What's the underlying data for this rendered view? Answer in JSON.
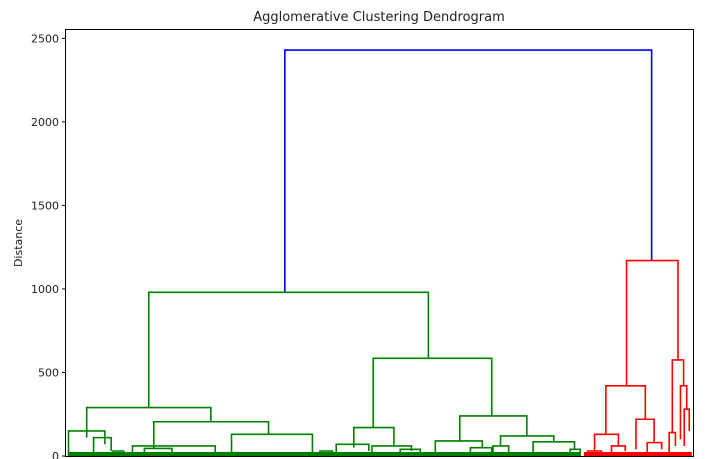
{
  "chart_data": {
    "type": "dendrogram",
    "title": "Agglomerative Clustering Dendrogram",
    "ylabel": "Distance",
    "xlabel": "",
    "ylim": [
      0,
      2550
    ],
    "xlim": [
      0,
      100
    ],
    "yticks": [
      0,
      500,
      1000,
      1500,
      2000,
      2500
    ],
    "grid": false,
    "colors": {
      "root": "#0000ff",
      "cluster_a": "#008000",
      "cluster_b": "#ff0000"
    },
    "links": [
      {
        "x1": 34.9,
        "x2": 93.4,
        "y": 2430,
        "y1": 980,
        "y2": 1170,
        "color": "root"
      },
      {
        "x1": 13.2,
        "x2": 57.8,
        "y": 980,
        "y1": 290,
        "y2": 585,
        "color": "cluster_a"
      },
      {
        "x1": 3.3,
        "x2": 23.1,
        "y": 290,
        "y1": 110,
        "y2": 205,
        "color": "cluster_a"
      },
      {
        "x1": 0.4,
        "x2": 6.2,
        "y": 150,
        "y1": 0,
        "y2": 70,
        "color": "cluster_a"
      },
      {
        "x1": 4.4,
        "x2": 7.2,
        "y": 110,
        "y1": 0,
        "y2": 30,
        "color": "cluster_a"
      },
      {
        "x1": 7.5,
        "x2": 9.2,
        "y": 30,
        "y1": 0,
        "y2": 0,
        "color": "cluster_a"
      },
      {
        "x1": 14.0,
        "x2": 32.3,
        "y": 205,
        "y1": 45,
        "y2": 130,
        "color": "cluster_a"
      },
      {
        "x1": 10.6,
        "x2": 23.8,
        "y": 60,
        "y1": 0,
        "y2": 0,
        "color": "cluster_a"
      },
      {
        "x1": 12.5,
        "x2": 16.9,
        "y": 45,
        "y1": 20,
        "y2": 0,
        "color": "cluster_a"
      },
      {
        "x1": 26.4,
        "x2": 39.3,
        "y": 130,
        "y1": 0,
        "y2": 0,
        "color": "cluster_a"
      },
      {
        "x1": 25.8,
        "x2": 27.7,
        "y": 20,
        "y1": 0,
        "y2": 0,
        "color": "cluster_a"
      },
      {
        "x1": 49.0,
        "x2": 67.9,
        "y": 585,
        "y1": 170,
        "y2": 240,
        "color": "cluster_a"
      },
      {
        "x1": 45.9,
        "x2": 52.3,
        "y": 170,
        "y1": 50,
        "y2": 60,
        "color": "cluster_a"
      },
      {
        "x1": 43.1,
        "x2": 48.3,
        "y": 70,
        "y1": 20,
        "y2": 30,
        "color": "cluster_a"
      },
      {
        "x1": 48.8,
        "x2": 55.1,
        "y": 60,
        "y1": 0,
        "y2": 30,
        "color": "cluster_a"
      },
      {
        "x1": 40.5,
        "x2": 42.5,
        "y": 30,
        "y1": 0,
        "y2": 0,
        "color": "cluster_a"
      },
      {
        "x1": 53.3,
        "x2": 56.5,
        "y": 40,
        "y1": 0,
        "y2": 0,
        "color": "cluster_a"
      },
      {
        "x1": 62.8,
        "x2": 73.5,
        "y": 240,
        "y1": 85,
        "y2": 120,
        "color": "cluster_a"
      },
      {
        "x1": 58.9,
        "x2": 66.4,
        "y": 90,
        "y1": 0,
        "y2": 50,
        "color": "cluster_a"
      },
      {
        "x1": 64.5,
        "x2": 67.9,
        "y": 50,
        "y1": 0,
        "y2": 0,
        "color": "cluster_a"
      },
      {
        "x1": 69.3,
        "x2": 77.8,
        "y": 120,
        "y1": 60,
        "y2": 85,
        "color": "cluster_a"
      },
      {
        "x1": 68.1,
        "x2": 70.6,
        "y": 60,
        "y1": 0,
        "y2": 0,
        "color": "cluster_a"
      },
      {
        "x1": 74.5,
        "x2": 81.1,
        "y": 85,
        "y1": 0,
        "y2": 40,
        "color": "cluster_a"
      },
      {
        "x1": 80.4,
        "x2": 82.0,
        "y": 40,
        "y1": 0,
        "y2": 0,
        "color": "cluster_a"
      },
      {
        "x1": 89.4,
        "x2": 97.6,
        "y": 1170,
        "y1": 420,
        "y2": 575,
        "color": "cluster_b"
      },
      {
        "x1": 86.1,
        "x2": 92.4,
        "y": 420,
        "y1": 130,
        "y2": 220,
        "color": "cluster_b"
      },
      {
        "x1": 84.3,
        "x2": 88.1,
        "y": 130,
        "y1": 30,
        "y2": 60,
        "color": "cluster_b"
      },
      {
        "x1": 83.2,
        "x2": 85.4,
        "y": 30,
        "y1": 0,
        "y2": 0,
        "color": "cluster_b"
      },
      {
        "x1": 87.0,
        "x2": 89.2,
        "y": 60,
        "y1": 0,
        "y2": 30,
        "color": "cluster_b"
      },
      {
        "x1": 90.9,
        "x2": 93.8,
        "y": 220,
        "y1": 40,
        "y2": 80,
        "color": "cluster_b"
      },
      {
        "x1": 92.7,
        "x2": 95.0,
        "y": 80,
        "y1": 0,
        "y2": 40,
        "color": "cluster_b"
      },
      {
        "x1": 96.7,
        "x2": 98.5,
        "y": 575,
        "y1": 140,
        "y2": 420,
        "color": "cluster_b"
      },
      {
        "x1": 96.2,
        "x2": 97.2,
        "y": 140,
        "y1": 0,
        "y2": 60,
        "color": "cluster_b"
      },
      {
        "x1": 98.0,
        "x2": 99.0,
        "y": 420,
        "y1": 100,
        "y2": 280,
        "color": "cluster_b"
      },
      {
        "x1": 98.6,
        "x2": 99.4,
        "y": 280,
        "y1": 60,
        "y2": 150,
        "color": "cluster_b"
      }
    ],
    "leaf_ranges": [
      {
        "x1": 0.4,
        "x2": 82.0,
        "color": "cluster_a"
      },
      {
        "x1": 82.6,
        "x2": 99.8,
        "color": "cluster_b"
      }
    ]
  }
}
